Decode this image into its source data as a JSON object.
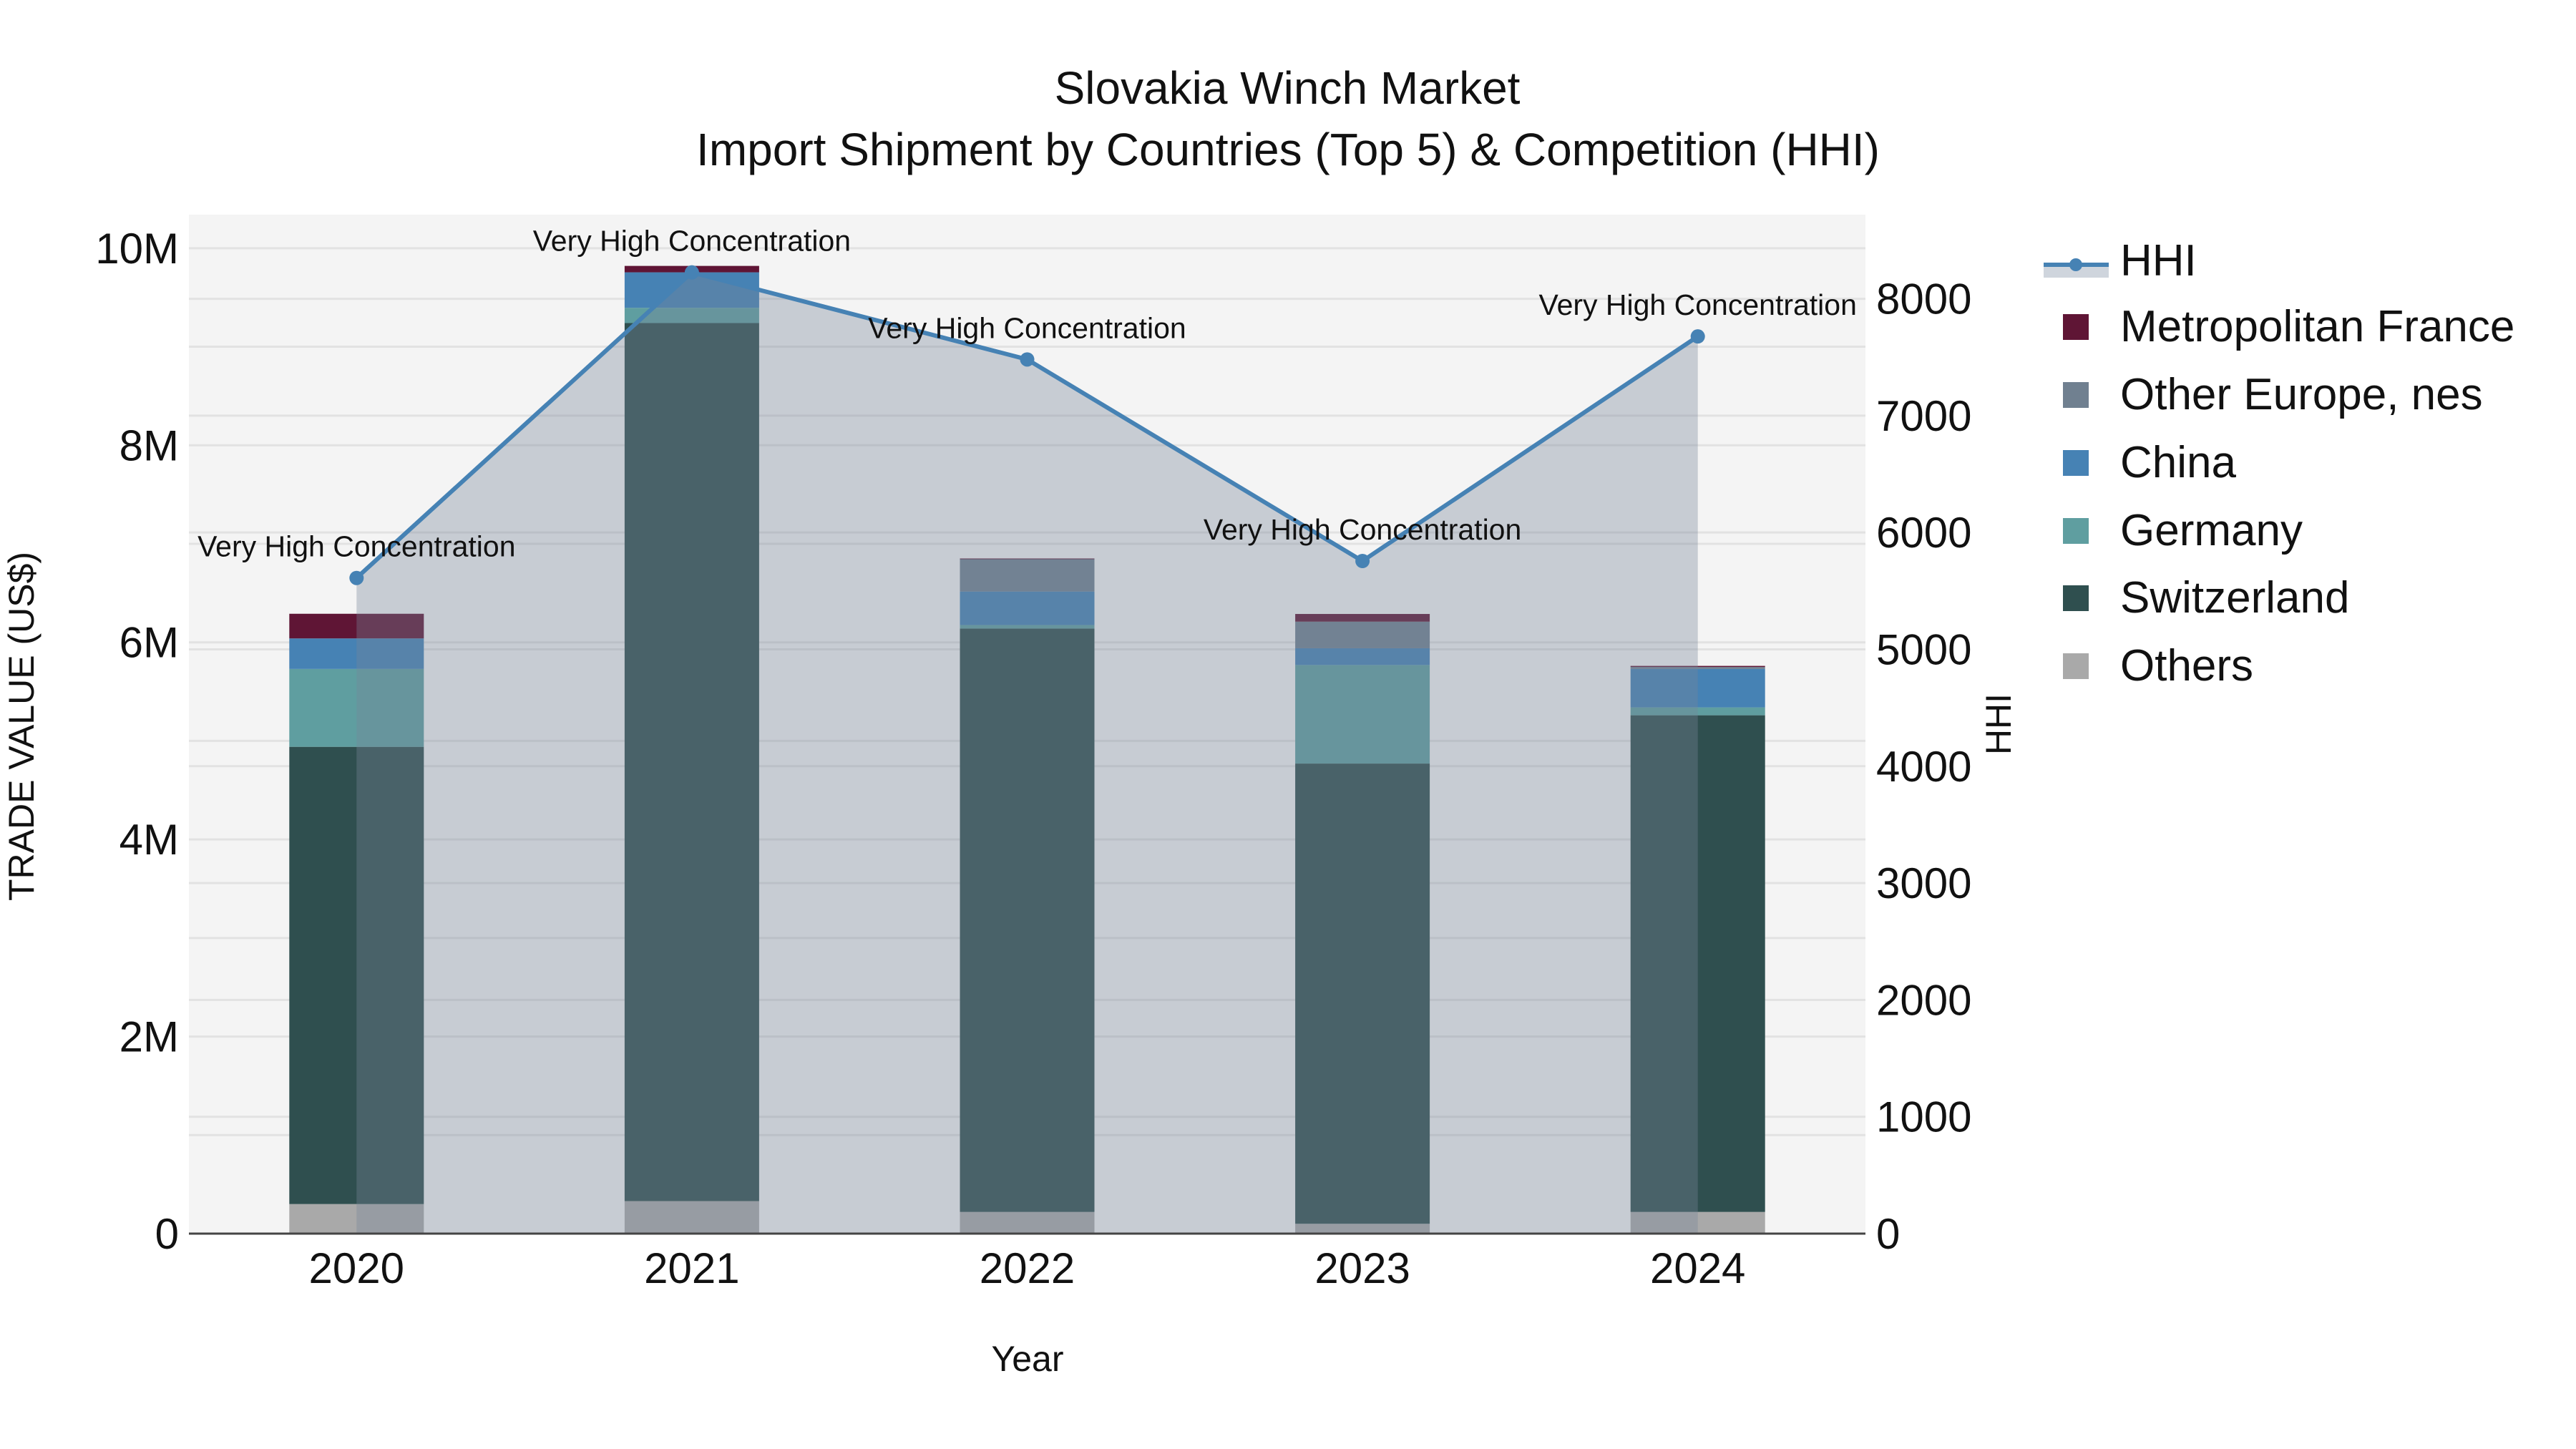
{
  "title": {
    "line1": "Slovakia Winch Market",
    "line2": "Import Shipment by Countries (Top 5) & Competition (HHI)"
  },
  "axes": {
    "x_title": "Year",
    "y_title": "TRADE VALUE (US$)",
    "y2_title": "HHI",
    "y_ticks": [
      "0",
      "2M",
      "4M",
      "6M",
      "8M",
      "10M"
    ],
    "y2_ticks": [
      "0",
      "1000",
      "2000",
      "3000",
      "4000",
      "5000",
      "6000",
      "7000",
      "8000"
    ]
  },
  "legend": {
    "items": [
      {
        "label": "HHI",
        "type": "line",
        "color": "#4682b4"
      },
      {
        "label": "Metropolitan France",
        "type": "bar",
        "color": "#5f1535"
      },
      {
        "label": "Other Europe, nes",
        "type": "bar",
        "color": "#708090"
      },
      {
        "label": "China",
        "type": "bar",
        "color": "#4682b4"
      },
      {
        "label": "Germany",
        "type": "bar",
        "color": "#5f9ea0"
      },
      {
        "label": "Switzerland",
        "type": "bar",
        "color": "#2f4f4f"
      },
      {
        "label": "Others",
        "type": "bar",
        "color": "#a9a9a9"
      }
    ]
  },
  "chart_data": {
    "type": "bar",
    "subtype": "stacked bar with line overlay (secondary axis)",
    "title": "Slovakia Winch Market — Import Shipment by Countries (Top 5) & Competition (HHI)",
    "xlabel": "Year",
    "ylabel": "TRADE VALUE (US$)",
    "y2label": "HHI",
    "categories": [
      "2020",
      "2021",
      "2022",
      "2023",
      "2024"
    ],
    "ylim": [
      0,
      10340000
    ],
    "y2lim": [
      0,
      8720
    ],
    "grid": true,
    "legend_position": "right",
    "stack_order_bottom_to_top": [
      "Others",
      "Switzerland",
      "Germany",
      "China",
      "Other Europe, nes",
      "Metropolitan France"
    ],
    "series": [
      {
        "name": "Others",
        "color": "#a9a9a9",
        "values": [
          300000,
          330000,
          220000,
          100000,
          220000
        ]
      },
      {
        "name": "Switzerland",
        "color": "#2f4f4f",
        "values": [
          4640000,
          8910000,
          5920000,
          4670000,
          5040000
        ]
      },
      {
        "name": "Germany",
        "color": "#5f9ea0",
        "values": [
          790000,
          155000,
          36000,
          1000000,
          80000
        ]
      },
      {
        "name": "China",
        "color": "#4682b4",
        "values": [
          310000,
          360000,
          340000,
          170000,
          390000
        ]
      },
      {
        "name": "Other Europe, nes",
        "color": "#708090",
        "values": [
          0,
          0,
          330000,
          270000,
          20000
        ]
      },
      {
        "name": "Metropolitan France",
        "color": "#5f1535",
        "values": [
          250000,
          65000,
          5000,
          78000,
          11000
        ]
      }
    ],
    "line_series": {
      "name": "HHI",
      "axis": "y2",
      "color": "#4682b4",
      "fill": "tozeroy",
      "values": [
        5611,
        8226,
        7481,
        5756,
        7678
      ]
    },
    "annotations": [
      {
        "x": "2020",
        "text": "Very High Concentration"
      },
      {
        "x": "2021",
        "text": "Very High Concentration"
      },
      {
        "x": "2022",
        "text": "Very High Concentration"
      },
      {
        "x": "2023",
        "text": "Very High Concentration"
      },
      {
        "x": "2024",
        "text": "Very High Concentration"
      }
    ]
  }
}
